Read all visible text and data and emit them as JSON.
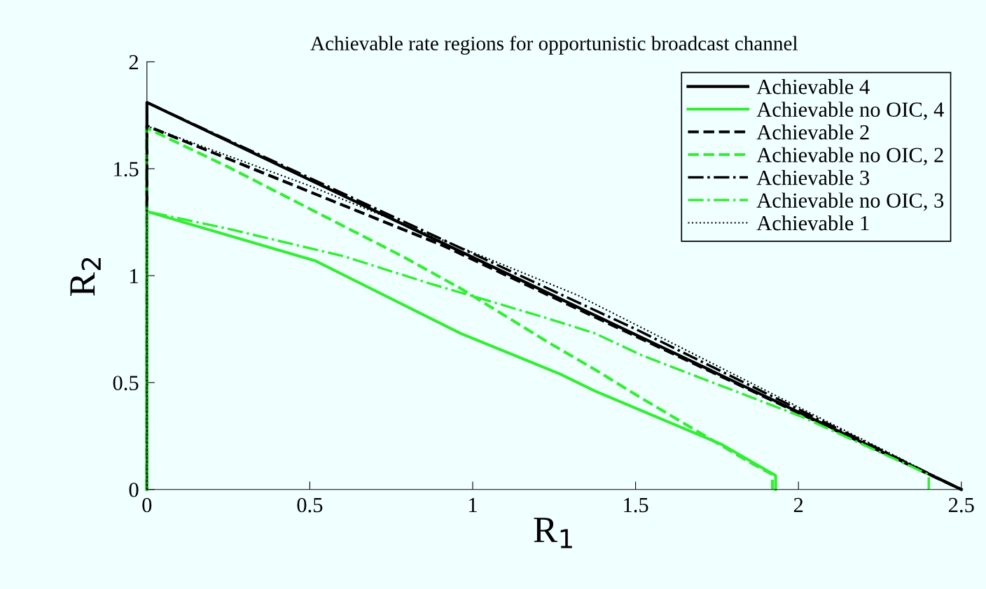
{
  "chart_data": {
    "type": "line",
    "title": "Achievable rate regions for opportunistic broadcast channel",
    "xlabel": "R$_{1}$",
    "ylabel": "R$_{2}$",
    "xlim": [
      0,
      2.5
    ],
    "ylim": [
      0,
      2
    ],
    "xticks": [
      0,
      0.5,
      1,
      1.5,
      2,
      2.5
    ],
    "yticks": [
      0,
      0.5,
      1,
      1.5,
      2
    ],
    "grid": false,
    "legend": "top right",
    "marker": "none",
    "series": [
      {
        "name": "Achievable 4",
        "color": "#000000",
        "line_style": "solid",
        "x": [
          0,
          0,
          2.5
        ],
        "values": [
          0,
          1.81,
          0
        ]
      },
      {
        "name": "Achievable no OIC, 4",
        "color": "#33ee33",
        "line_style": "solid",
        "x": [
          0,
          0,
          0.516,
          0.963,
          1.268,
          1.376,
          1.765,
          1.93,
          1.93
        ],
        "values": [
          0,
          1.3,
          1.07,
          0.73,
          0.54,
          0.46,
          0.21,
          0.065,
          0
        ]
      },
      {
        "name": "Achievable 2",
        "color": "#000000",
        "line_style": "dashed",
        "x": [
          0,
          0,
          0.91,
          2.5
        ],
        "values": [
          0,
          1.7,
          1.14,
          0
        ]
      },
      {
        "name": "Achievable no OIC, 2",
        "color": "#33ee33",
        "line_style": "dashed",
        "x": [
          0,
          0,
          0.247,
          0.516,
          0.785,
          0.963,
          1.23,
          1.376,
          1.515,
          1.847,
          1.92,
          1.92
        ],
        "values": [
          0,
          1.69,
          1.51,
          1.3,
          1.09,
          0.94,
          0.69,
          0.56,
          0.43,
          0.13,
          0.07,
          0
        ]
      },
      {
        "name": "Achievable 3",
        "color": "#000000",
        "line_style": "dashdot",
        "x": [
          0,
          0,
          1.5,
          2.5
        ],
        "values": [
          0,
          1.81,
          0.75,
          0
        ]
      },
      {
        "name": "Achievable no OIC, 3",
        "color": "#33ee33",
        "line_style": "dashdot",
        "x": [
          0,
          0,
          0.247,
          0.606,
          0.875,
          1.01,
          1.23,
          1.376,
          1.515,
          2.01,
          2.4,
          2.4
        ],
        "values": [
          0,
          1.3,
          1.22,
          1.09,
          0.96,
          0.9,
          0.8,
          0.73,
          0.63,
          0.34,
          0.07,
          0
        ]
      },
      {
        "name": "Achievable 1",
        "color": "#000000",
        "line_style": "dotted",
        "x": [
          0,
          0,
          0.5,
          1.32,
          2.5
        ],
        "values": [
          0,
          1.7,
          1.42,
          0.91,
          0
        ]
      }
    ]
  }
}
